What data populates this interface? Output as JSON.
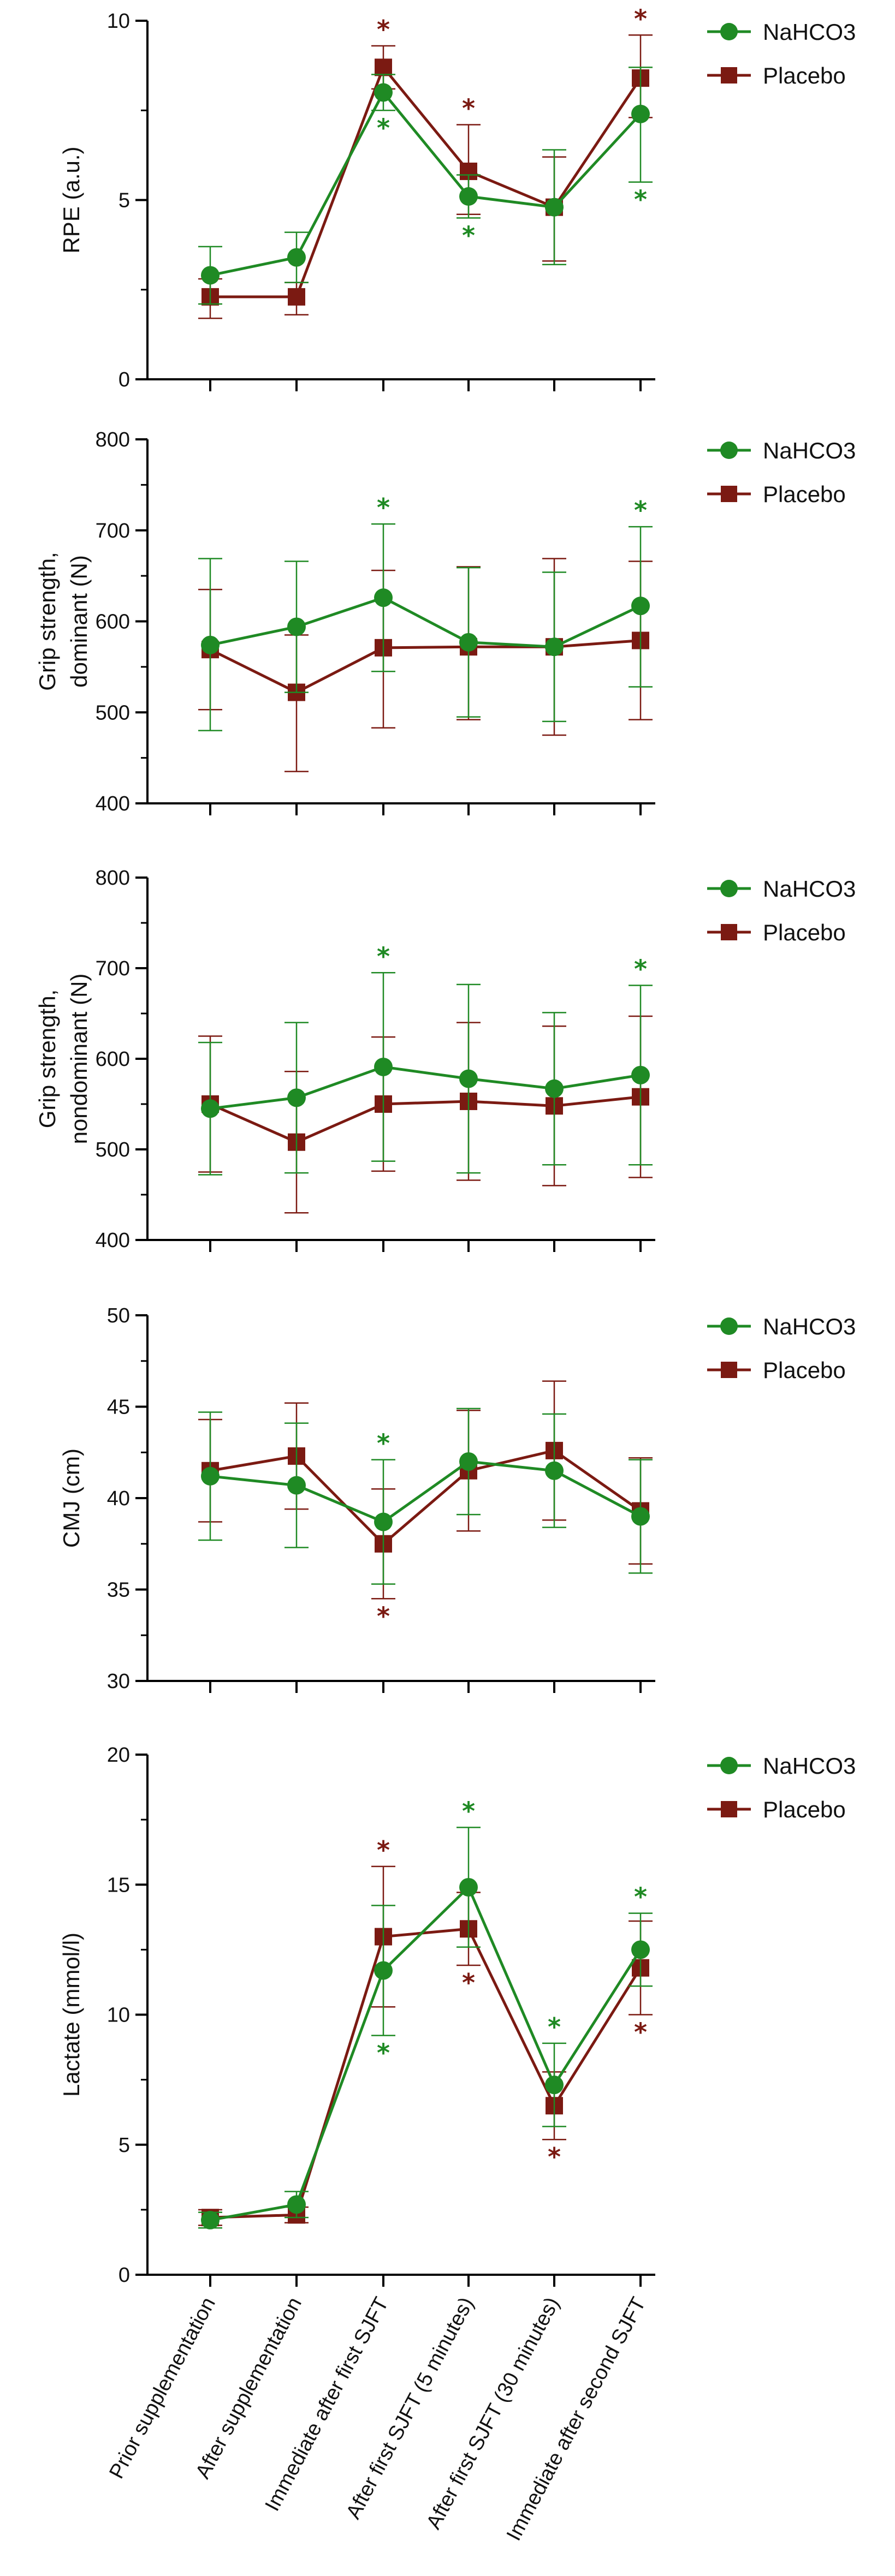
{
  "colors": {
    "NaHCO3": "#1f8a24",
    "Placebo": "#7b1a12",
    "axis": "#000000"
  },
  "legend": {
    "series": [
      "NaHCO3",
      "Placebo"
    ]
  },
  "categories": [
    "Prior supplementation",
    "After supplementation",
    "Immediate after first SJFT",
    "After first SJFT (5 minutes)",
    "After first SJFT (30 minutes)",
    "Immediate after second SJFT"
  ],
  "chart_data": [
    {
      "type": "line",
      "ylabel": "RPE (a.u.)",
      "ylim": [
        0,
        10
      ],
      "yticks": [
        0,
        5,
        10
      ],
      "series": [
        {
          "name": "NaHCO3",
          "values": [
            2.9,
            3.4,
            8.0,
            5.1,
            4.8,
            7.4
          ],
          "err_hi": [
            3.7,
            4.1,
            8.5,
            5.7,
            6.4,
            8.7
          ],
          "err_lo": [
            2.1,
            2.7,
            7.5,
            4.5,
            3.2,
            5.5
          ]
        },
        {
          "name": "Placebo",
          "values": [
            2.3,
            2.3,
            8.7,
            5.8,
            4.8,
            8.4
          ],
          "err_hi": [
            2.8,
            2.7,
            9.3,
            7.1,
            6.2,
            9.6
          ],
          "err_lo": [
            1.7,
            1.8,
            8.1,
            4.6,
            3.3,
            7.3
          ]
        }
      ],
      "stars": [
        {
          "index": 2,
          "series": "Placebo",
          "pos": "above"
        },
        {
          "index": 3,
          "series": "Placebo",
          "pos": "above"
        },
        {
          "index": 5,
          "series": "Placebo",
          "pos": "above"
        },
        {
          "index": 2,
          "series": "NaHCO3",
          "pos": "below"
        },
        {
          "index": 3,
          "series": "NaHCO3",
          "pos": "below"
        },
        {
          "index": 5,
          "series": "NaHCO3",
          "pos": "below"
        }
      ]
    },
    {
      "type": "line",
      "ylabel": [
        "Grip strength,",
        "dominant (N)"
      ],
      "ylim": [
        400,
        800
      ],
      "yticks": [
        400,
        500,
        600,
        700,
        800
      ],
      "series": [
        {
          "name": "NaHCO3",
          "values": [
            574,
            594,
            626,
            577,
            572,
            617
          ],
          "err_hi": [
            669,
            666,
            707,
            659,
            654,
            704
          ],
          "err_lo": [
            480,
            522,
            545,
            495,
            490,
            528
          ]
        },
        {
          "name": "Placebo",
          "values": [
            569,
            522,
            571,
            572,
            572,
            579
          ],
          "err_hi": [
            635,
            585,
            656,
            660,
            669,
            666
          ],
          "err_lo": [
            503,
            435,
            483,
            492,
            475,
            492
          ]
        }
      ],
      "stars": [
        {
          "index": 2,
          "series": "NaHCO3",
          "pos": "above"
        },
        {
          "index": 5,
          "series": "NaHCO3",
          "pos": "above"
        }
      ]
    },
    {
      "type": "line",
      "ylabel": [
        "Grip strength,",
        "nondominant (N)"
      ],
      "ylim": [
        400,
        800
      ],
      "yticks": [
        400,
        500,
        600,
        700,
        800
      ],
      "series": [
        {
          "name": "NaHCO3",
          "values": [
            545,
            557,
            591,
            578,
            567,
            582
          ],
          "err_hi": [
            618,
            640,
            695,
            682,
            651,
            681
          ],
          "err_lo": [
            472,
            474,
            487,
            474,
            483,
            483
          ]
        },
        {
          "name": "Placebo",
          "values": [
            550,
            508,
            550,
            553,
            548,
            558
          ],
          "err_hi": [
            625,
            586,
            624,
            640,
            636,
            647
          ],
          "err_lo": [
            475,
            430,
            476,
            466,
            460,
            469
          ]
        }
      ],
      "stars": [
        {
          "index": 2,
          "series": "NaHCO3",
          "pos": "above"
        },
        {
          "index": 5,
          "series": "NaHCO3",
          "pos": "above"
        }
      ]
    },
    {
      "type": "line",
      "ylabel": "CMJ (cm)",
      "ylim": [
        30,
        50
      ],
      "yticks": [
        30,
        35,
        40,
        45,
        50
      ],
      "series": [
        {
          "name": "NaHCO3",
          "values": [
            41.2,
            40.7,
            38.7,
            42.0,
            41.5,
            39.0
          ],
          "err_hi": [
            44.7,
            44.1,
            42.1,
            44.9,
            44.6,
            42.1
          ],
          "err_lo": [
            37.7,
            37.3,
            35.3,
            39.1,
            38.4,
            35.9
          ]
        },
        {
          "name": "Placebo",
          "values": [
            41.5,
            42.3,
            37.5,
            41.5,
            42.6,
            39.3
          ],
          "err_hi": [
            44.3,
            45.2,
            40.5,
            44.8,
            46.4,
            42.2
          ],
          "err_lo": [
            38.7,
            39.4,
            34.5,
            38.2,
            38.8,
            36.4
          ]
        }
      ],
      "stars": [
        {
          "index": 2,
          "series": "NaHCO3",
          "pos": "above"
        },
        {
          "index": 2,
          "series": "Placebo",
          "pos": "below"
        }
      ]
    },
    {
      "type": "line",
      "ylabel": "Lactate (mmol/l)",
      "ylim": [
        0,
        20
      ],
      "yticks": [
        0,
        5,
        10,
        15,
        20
      ],
      "series": [
        {
          "name": "NaHCO3",
          "values": [
            2.1,
            2.7,
            11.7,
            14.9,
            7.3,
            12.5
          ],
          "err_hi": [
            2.4,
            3.2,
            14.2,
            17.2,
            8.9,
            13.9
          ],
          "err_lo": [
            1.8,
            2.2,
            9.2,
            12.6,
            5.7,
            11.1
          ]
        },
        {
          "name": "Placebo",
          "values": [
            2.2,
            2.3,
            13.0,
            13.3,
            6.5,
            11.8
          ],
          "err_hi": [
            2.5,
            2.6,
            15.7,
            14.7,
            7.8,
            13.6
          ],
          "err_lo": [
            1.9,
            2.0,
            10.3,
            11.9,
            5.2,
            10.0
          ]
        }
      ],
      "stars": [
        {
          "index": 2,
          "series": "Placebo",
          "pos": "above"
        },
        {
          "index": 3,
          "series": "NaHCO3",
          "pos": "above"
        },
        {
          "index": 4,
          "series": "NaHCO3",
          "pos": "above"
        },
        {
          "index": 5,
          "series": "NaHCO3",
          "pos": "above"
        },
        {
          "index": 2,
          "series": "NaHCO3",
          "pos": "below"
        },
        {
          "index": 3,
          "series": "Placebo",
          "pos": "below"
        },
        {
          "index": 4,
          "series": "Placebo",
          "pos": "below"
        },
        {
          "index": 5,
          "series": "Placebo",
          "pos": "below"
        }
      ]
    }
  ]
}
